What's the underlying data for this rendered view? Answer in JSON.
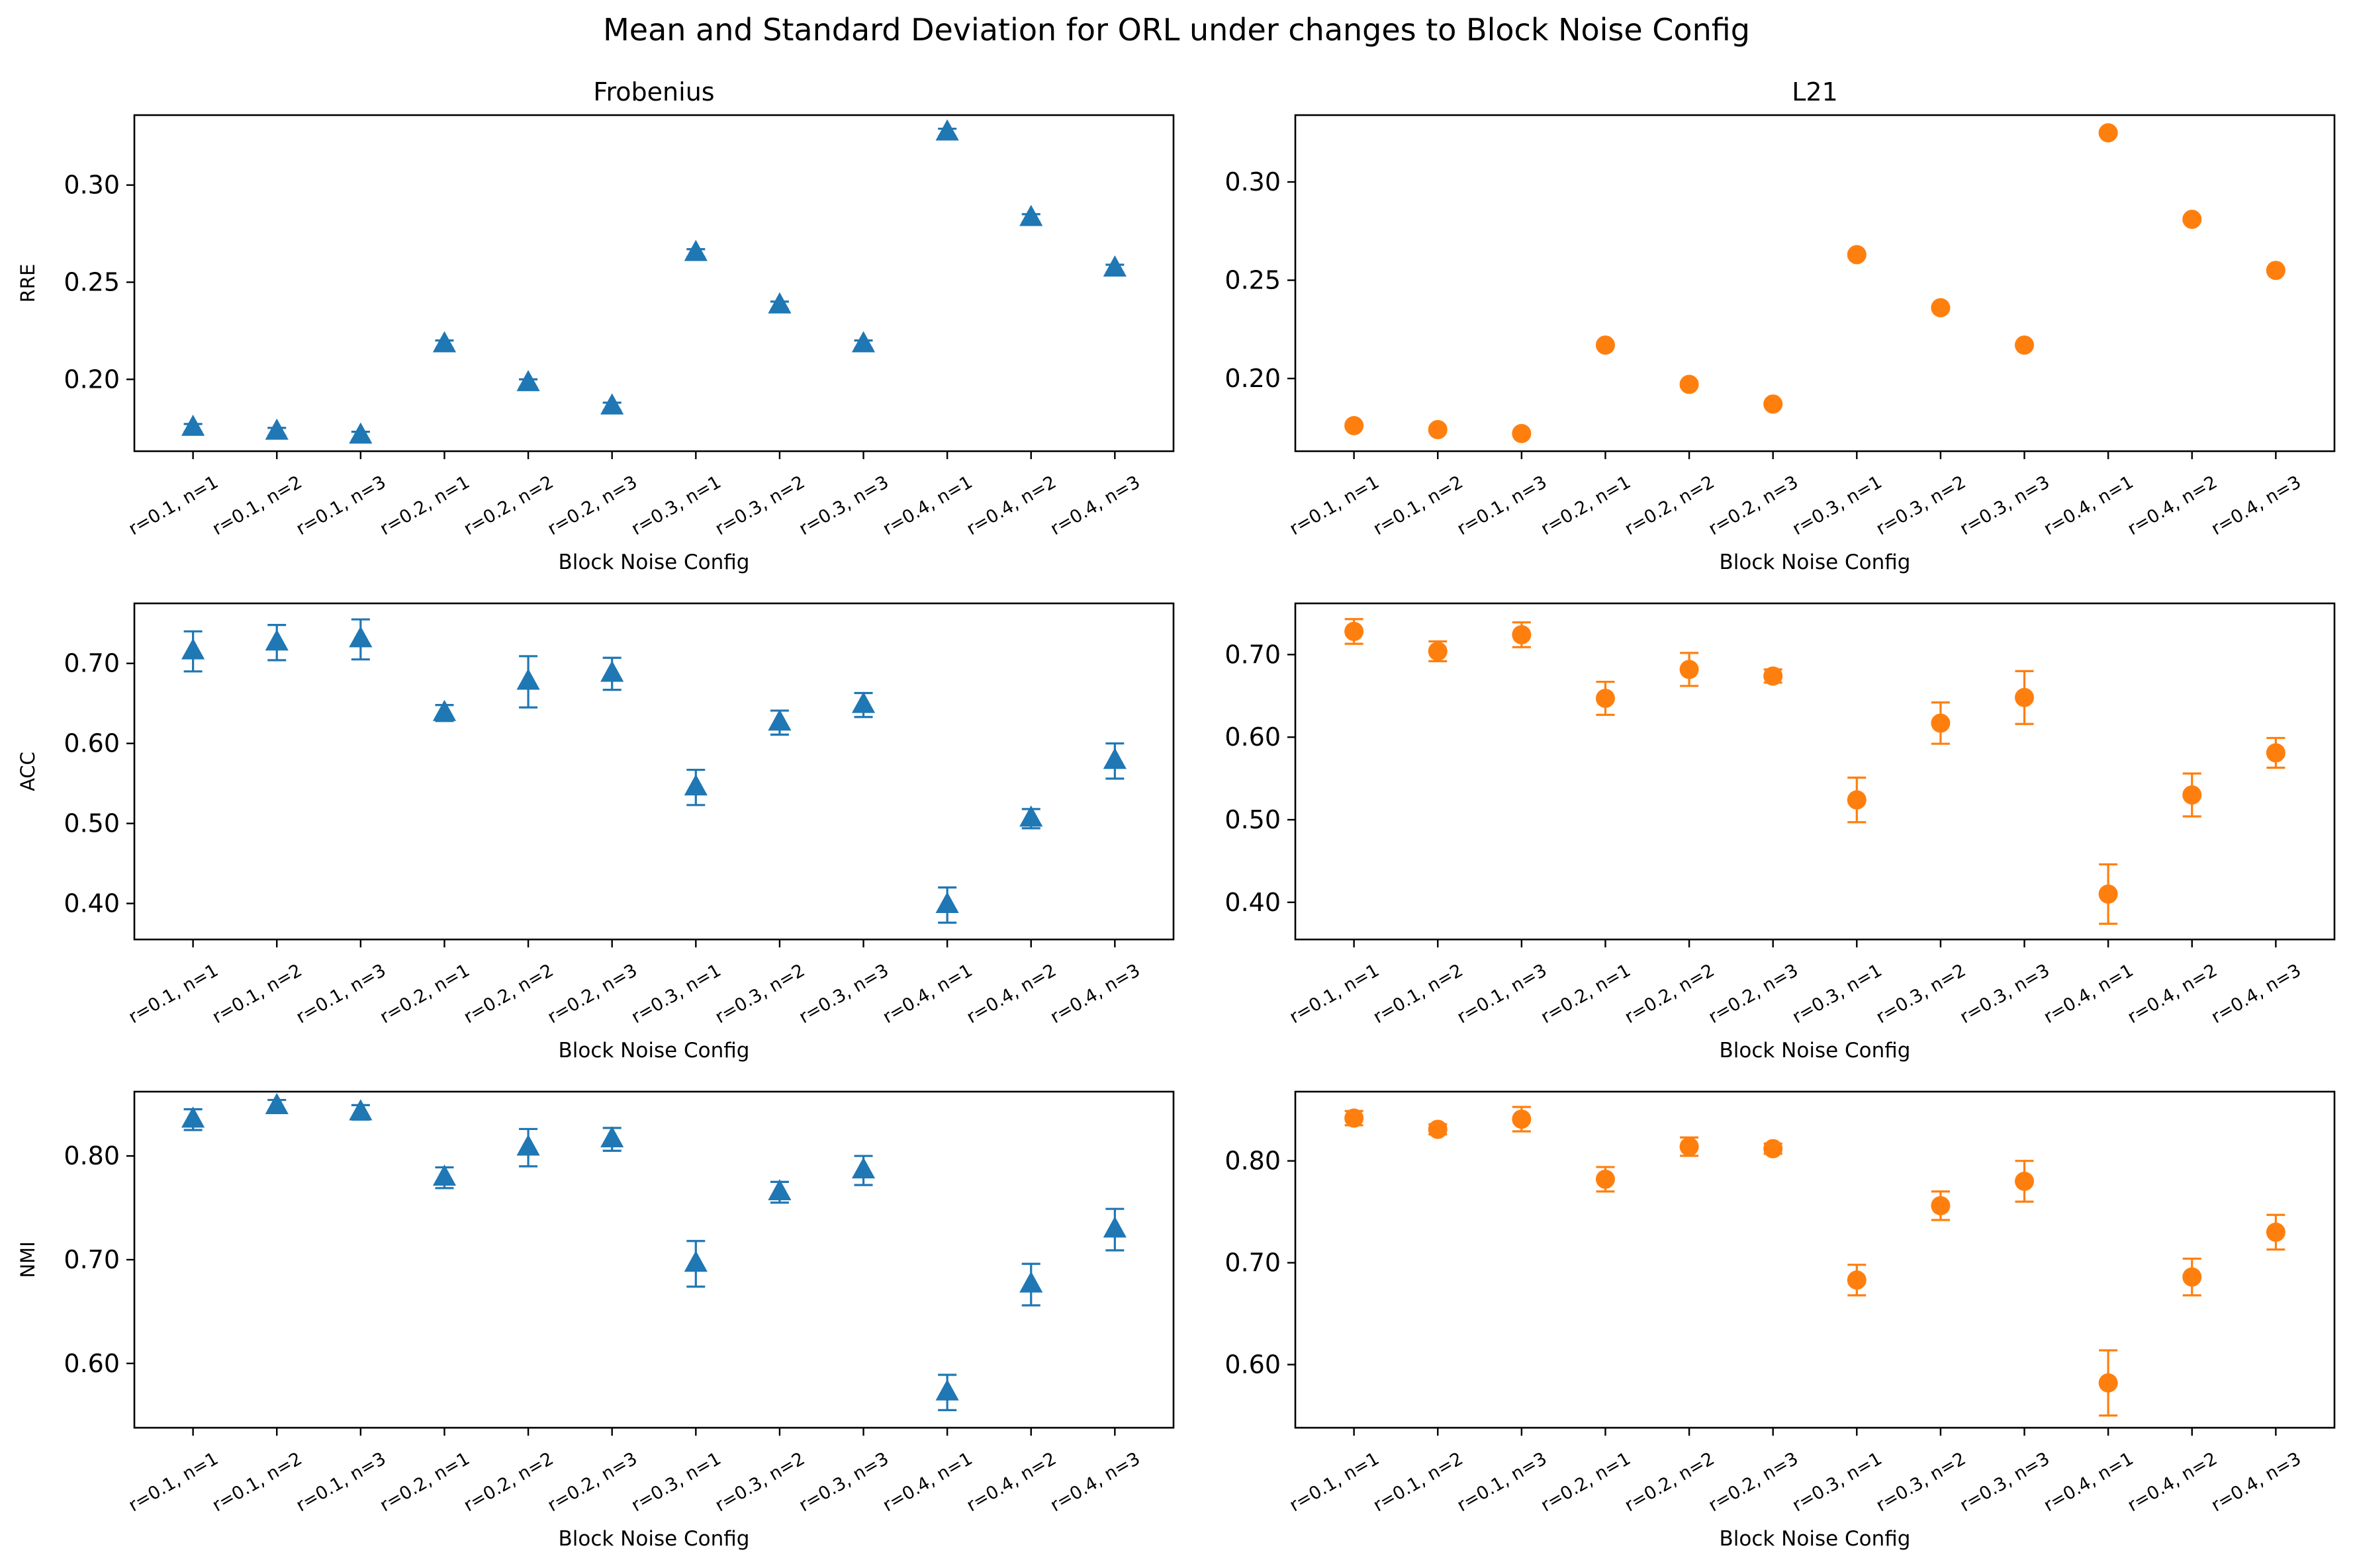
{
  "figure": {
    "title": "Mean and Standard Deviation for ORL under changes to Block Noise Config",
    "colors": {
      "frobenius": "#1f77b4",
      "l21": "#ff7f0e"
    }
  },
  "categories": [
    "r=0.1, n=1",
    "r=0.1, n=2",
    "r=0.1, n=3",
    "r=0.2, n=1",
    "r=0.2, n=2",
    "r=0.2, n=3",
    "r=0.3, n=1",
    "r=0.3, n=2",
    "r=0.3, n=3",
    "r=0.4, n=1",
    "r=0.4, n=2",
    "r=0.4, n=3"
  ],
  "chart_data": [
    {
      "type": "scatter",
      "marker": "triangle",
      "title": "Frobenius",
      "xlabel": "Block Noise Config",
      "ylabel": "RRE",
      "ylim": [
        0.163,
        0.336
      ],
      "yticks": [
        0.2,
        0.25,
        0.3
      ],
      "color": "#1f77b4",
      "values": [
        0.175,
        0.173,
        0.171,
        0.218,
        0.198,
        0.186,
        0.265,
        0.238,
        0.218,
        0.327,
        0.283,
        0.257
      ],
      "errors": [
        0.002,
        0.002,
        0.002,
        0.002,
        0.002,
        0.002,
        0.002,
        0.002,
        0.002,
        0.002,
        0.002,
        0.002
      ]
    },
    {
      "type": "scatter",
      "marker": "circle",
      "title": "L21",
      "xlabel": "Block Noise Config",
      "ylabel": "",
      "ylim": [
        0.163,
        0.334
      ],
      "yticks": [
        0.2,
        0.25,
        0.3
      ],
      "color": "#ff7f0e",
      "values": [
        0.176,
        0.174,
        0.172,
        0.217,
        0.197,
        0.187,
        0.263,
        0.236,
        0.217,
        0.325,
        0.281,
        0.255
      ],
      "errors": [
        0.001,
        0.001,
        0.001,
        0.001,
        0.001,
        0.001,
        0.001,
        0.001,
        0.001,
        0.001,
        0.001,
        0.001
      ]
    },
    {
      "type": "scatter",
      "marker": "triangle",
      "title": "",
      "xlabel": "Block Noise Config",
      "ylabel": "ACC",
      "ylim": [
        0.355,
        0.775
      ],
      "yticks": [
        0.4,
        0.5,
        0.6,
        0.7
      ],
      "color": "#1f77b4",
      "values": [
        0.715,
        0.726,
        0.73,
        0.638,
        0.677,
        0.687,
        0.545,
        0.626,
        0.648,
        0.398,
        0.506,
        0.578
      ],
      "errors": [
        0.025,
        0.022,
        0.025,
        0.01,
        0.032,
        0.02,
        0.022,
        0.015,
        0.015,
        0.022,
        0.012,
        0.022
      ]
    },
    {
      "type": "scatter",
      "marker": "circle",
      "title": "",
      "xlabel": "Block Noise Config",
      "ylabel": "",
      "ylim": [
        0.355,
        0.762
      ],
      "yticks": [
        0.4,
        0.5,
        0.6,
        0.7
      ],
      "color": "#ff7f0e",
      "values": [
        0.728,
        0.704,
        0.724,
        0.647,
        0.682,
        0.674,
        0.524,
        0.617,
        0.648,
        0.41,
        0.53,
        0.581
      ],
      "errors": [
        0.015,
        0.012,
        0.015,
        0.02,
        0.02,
        0.008,
        0.027,
        0.025,
        0.032,
        0.036,
        0.026,
        0.018
      ]
    },
    {
      "type": "scatter",
      "marker": "triangle",
      "title": "",
      "xlabel": "Block Noise Config",
      "ylabel": "NMI",
      "ylim": [
        0.538,
        0.862
      ],
      "yticks": [
        0.6,
        0.7,
        0.8
      ],
      "color": "#1f77b4",
      "values": [
        0.835,
        0.848,
        0.842,
        0.779,
        0.808,
        0.816,
        0.696,
        0.765,
        0.786,
        0.572,
        0.676,
        0.729
      ],
      "errors": [
        0.01,
        0.006,
        0.007,
        0.01,
        0.018,
        0.011,
        0.022,
        0.01,
        0.014,
        0.017,
        0.02,
        0.02
      ]
    },
    {
      "type": "scatter",
      "marker": "circle",
      "title": "",
      "xlabel": "Block Noise Config",
      "ylabel": "",
      "ylim": [
        0.538,
        0.868
      ],
      "yticks": [
        0.6,
        0.7,
        0.8
      ],
      "color": "#ff7f0e",
      "values": [
        0.842,
        0.831,
        0.841,
        0.782,
        0.814,
        0.812,
        0.683,
        0.756,
        0.78,
        0.582,
        0.686,
        0.73
      ],
      "errors": [
        0.007,
        0.005,
        0.012,
        0.012,
        0.009,
        0.005,
        0.015,
        0.014,
        0.02,
        0.032,
        0.018,
        0.017
      ]
    }
  ]
}
